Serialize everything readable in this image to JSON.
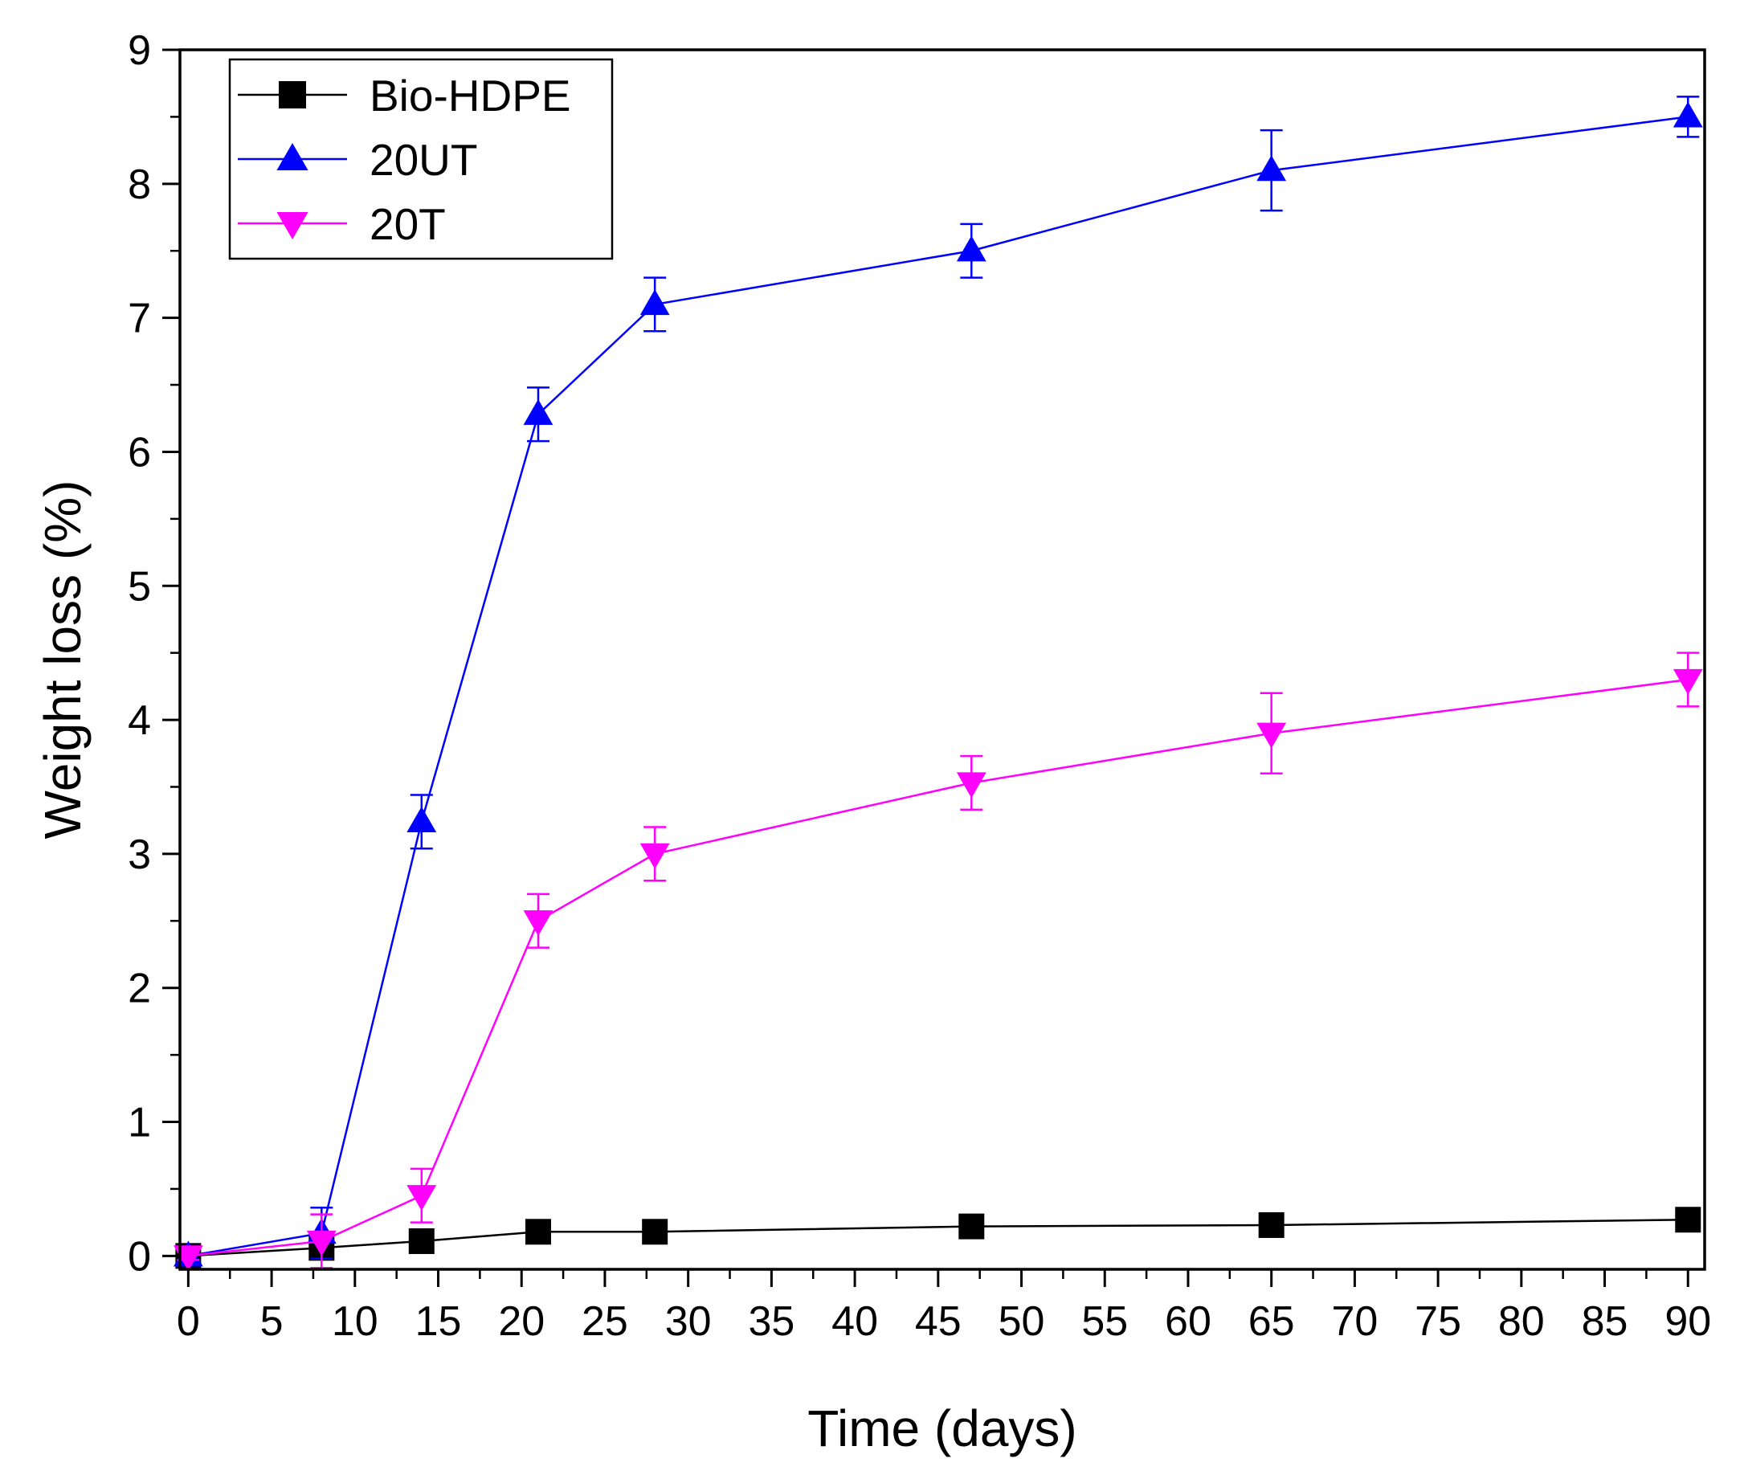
{
  "chart_data": {
    "type": "line",
    "title": "",
    "xlabel": "Time (days)",
    "ylabel": "Weight loss (%)",
    "xlim": [
      -0.5,
      91
    ],
    "ylim": [
      -0.1,
      9
    ],
    "xticks": [
      0,
      5,
      10,
      15,
      20,
      25,
      30,
      35,
      40,
      45,
      50,
      55,
      60,
      65,
      70,
      75,
      80,
      85,
      90
    ],
    "xtick_labels": [
      "0",
      "5",
      "10",
      "15",
      "20",
      "25",
      "30",
      "35",
      "40",
      "45",
      "50",
      "55",
      "60",
      "65",
      "70",
      "75",
      "80",
      "85",
      "90"
    ],
    "yticks": [
      0,
      1,
      2,
      3,
      4,
      5,
      6,
      7,
      8,
      9
    ],
    "ytick_labels": [
      "0",
      "1",
      "2",
      "3",
      "4",
      "5",
      "6",
      "7",
      "8",
      "9"
    ],
    "x_minor_step": 2.5,
    "y_minor_step": 0.5,
    "grid": false,
    "legend_position": "top-left",
    "series": [
      {
        "name": "Bio-HDPE",
        "color": "#000000",
        "marker": "square",
        "x": [
          0,
          8,
          14,
          21,
          28,
          47,
          65,
          90
        ],
        "y": [
          0,
          0.06,
          0.11,
          0.18,
          0.18,
          0.22,
          0.23,
          0.27
        ],
        "err": [
          0,
          0,
          0,
          0,
          0,
          0,
          0,
          0
        ]
      },
      {
        "name": "20UT",
        "color": "#0000ff",
        "marker": "triangle-up",
        "x": [
          0,
          8,
          14,
          21,
          28,
          47,
          65,
          90
        ],
        "y": [
          0,
          0.17,
          3.24,
          6.28,
          7.1,
          7.5,
          8.1,
          8.5
        ],
        "err": [
          0.05,
          0.19,
          0.2,
          0.2,
          0.2,
          0.2,
          0.3,
          0.15
        ]
      },
      {
        "name": "20T",
        "color": "#ff00ff",
        "marker": "triangle-down",
        "x": [
          0,
          8,
          14,
          21,
          28,
          47,
          65,
          90
        ],
        "y": [
          0,
          0.11,
          0.45,
          2.5,
          3.0,
          3.53,
          3.9,
          4.3
        ],
        "err": [
          0.03,
          0.2,
          0.2,
          0.2,
          0.2,
          0.2,
          0.3,
          0.2
        ]
      }
    ]
  }
}
